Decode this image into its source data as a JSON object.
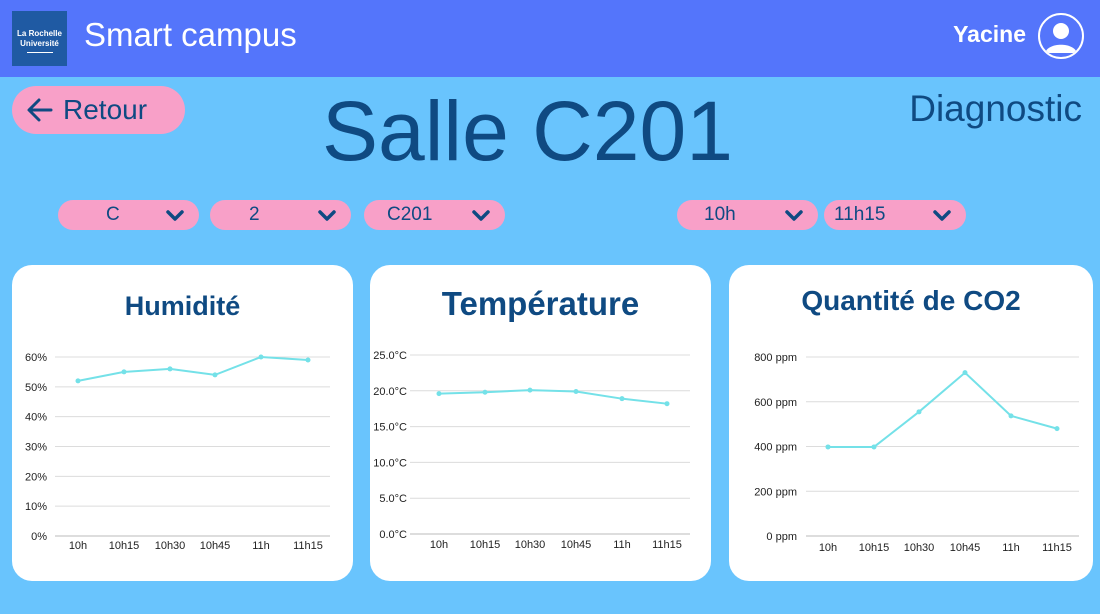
{
  "header": {
    "logo_line1": "La Rochelle",
    "logo_line2": "Université",
    "app_title": "Smart campus",
    "user_name": "Yacine"
  },
  "nav": {
    "back_label": "Retour",
    "back_icon": "arrow-left-icon"
  },
  "page": {
    "room_title": "Salle C201",
    "mode_label": "Diagnostic"
  },
  "filters": {
    "building": "C",
    "floor": "2",
    "room": "C201",
    "start_time": "10h",
    "end_time": "11h15"
  },
  "colors": {
    "background": "#69c4fd",
    "header": "#5475fb",
    "accent_pink": "#f8a0c8",
    "text_navy": "#0f4a82",
    "series": "#74e1e8"
  },
  "chart_data": [
    {
      "type": "line",
      "title": "Humidité",
      "x": [
        "10h",
        "10h15",
        "10h30",
        "10h45",
        "11h",
        "11h15"
      ],
      "values": [
        52,
        55,
        56,
        54,
        60,
        59
      ],
      "yticks": [
        "60%",
        "50%",
        "40%",
        "30%",
        "20%",
        "10%",
        "0%"
      ],
      "ylim": [
        0,
        60
      ],
      "grid": true
    },
    {
      "type": "line",
      "title": "Température",
      "x": [
        "10h",
        "10h15",
        "10h30",
        "10h45",
        "11h",
        "11h15"
      ],
      "values": [
        19.6,
        19.8,
        20.1,
        19.9,
        18.9,
        18.2
      ],
      "yticks": [
        "25.0°C",
        "20.0°C",
        "15.0°C",
        "10.0°C",
        "5.0°C",
        "0.0°C"
      ],
      "ylim": [
        0,
        25
      ],
      "grid": true
    },
    {
      "type": "line",
      "title": "Quantité de CO2",
      "x": [
        "10h",
        "10h15",
        "10h30",
        "10h45",
        "11h",
        "11h15"
      ],
      "values": [
        398,
        398,
        555,
        730,
        537,
        480
      ],
      "yticks": [
        "800 ppm",
        "600 ppm",
        "400 ppm",
        "200 ppm",
        "0 ppm"
      ],
      "ylim": [
        0,
        800
      ],
      "grid": true
    }
  ]
}
